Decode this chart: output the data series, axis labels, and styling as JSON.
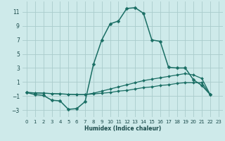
{
  "xlabel": "Humidex (Indice chaleur)",
  "bg_color": "#ceeaea",
  "grid_color": "#aacccc",
  "line_color": "#1a6e64",
  "xlim": [
    -0.5,
    23.5
  ],
  "ylim": [
    -4,
    12.5
  ],
  "yticks": [
    -3,
    -1,
    1,
    3,
    5,
    7,
    9,
    11
  ],
  "xticks": [
    0,
    1,
    2,
    3,
    4,
    5,
    6,
    7,
    8,
    9,
    10,
    11,
    12,
    13,
    14,
    15,
    16,
    17,
    18,
    19,
    20,
    21,
    22,
    23
  ],
  "series": [
    {
      "x": [
        0,
        1,
        2,
        3,
        4,
        5,
        6,
        7,
        8,
        9,
        10,
        11,
        12,
        13,
        14,
        15,
        16,
        17,
        18,
        19,
        20,
        21,
        22
      ],
      "y": [
        -0.5,
        -0.8,
        -0.9,
        -1.6,
        -1.7,
        -2.9,
        -2.8,
        -1.8,
        3.5,
        7.0,
        9.3,
        9.7,
        11.5,
        11.6,
        10.8,
        7.0,
        6.8,
        3.1,
        3.0,
        3.0,
        1.3,
        0.5,
        -0.8
      ],
      "marker": "D",
      "markersize": 2.5,
      "linewidth": 1.1
    },
    {
      "x": [
        0,
        1,
        2,
        3,
        4,
        5,
        6,
        7,
        8,
        9,
        10,
        11,
        12,
        13,
        14,
        15,
        16,
        17,
        18,
        19,
        20,
        21,
        22
      ],
      "y": [
        -0.5,
        -0.55,
        -0.6,
        -0.65,
        -0.7,
        -0.75,
        -0.8,
        -0.8,
        -0.6,
        -0.3,
        0.0,
        0.3,
        0.6,
        0.9,
        1.2,
        1.4,
        1.6,
        1.8,
        2.0,
        2.2,
        2.0,
        1.5,
        -0.8
      ],
      "marker": "D",
      "markersize": 2.0,
      "linewidth": 0.9
    },
    {
      "x": [
        0,
        1,
        2,
        3,
        4,
        5,
        6,
        7,
        8,
        9,
        10,
        11,
        12,
        13,
        14,
        15,
        16,
        17,
        18,
        19,
        20,
        21,
        22
      ],
      "y": [
        -0.5,
        -0.55,
        -0.6,
        -0.65,
        -0.7,
        -0.75,
        -0.8,
        -0.8,
        -0.7,
        -0.6,
        -0.5,
        -0.3,
        -0.2,
        0.0,
        0.2,
        0.3,
        0.5,
        0.6,
        0.8,
        0.9,
        0.9,
        0.9,
        -0.8
      ],
      "marker": "D",
      "markersize": 2.0,
      "linewidth": 0.9
    }
  ]
}
